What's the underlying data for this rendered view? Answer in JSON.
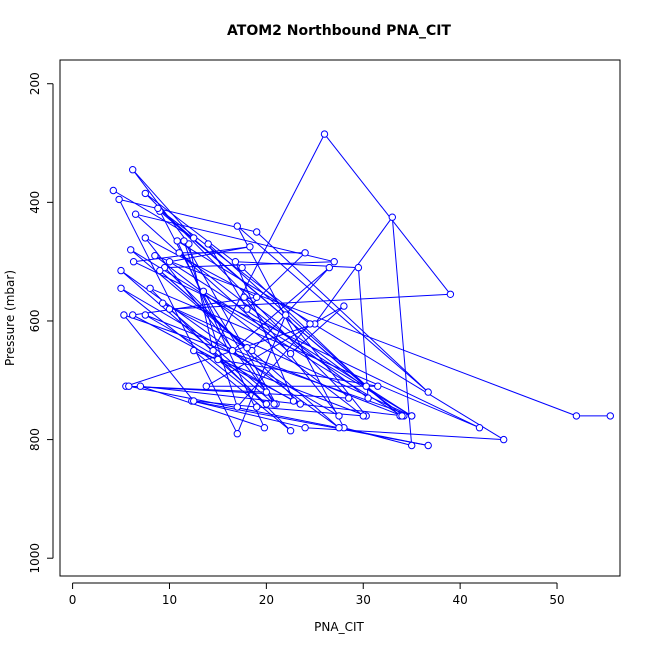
{
  "chart_data": {
    "type": "line",
    "title": "ATOM2 Northbound PNA_CIT",
    "xlabel": "PNA_CIT",
    "ylabel": "Pressure (mbar)",
    "xlim": [
      -1.3,
      56.5
    ],
    "ylim": [
      1030,
      160
    ],
    "y_reversed": true,
    "xticks": [
      0,
      10,
      20,
      30,
      40,
      50
    ],
    "yticks": [
      200,
      400,
      600,
      800,
      1000
    ],
    "color": "#0000ff",
    "marker": "open-circle",
    "grid": false,
    "legend": "none",
    "series": [
      {
        "x": [
          4.2,
          12.5,
          6.2,
          12.0,
          14.5,
          26.0,
          39.0,
          10.0,
          20.0,
          5.5,
          25.0,
          33.0,
          35.0,
          28.0,
          17.0,
          36.7,
          19.0,
          4.8,
          17.0,
          22.0,
          30.3,
          12.5,
          22.5,
          8.0,
          42.0,
          6.3,
          18.3,
          10.0,
          35.0,
          9.3,
          18.5,
          26.5,
          16.5,
          9.0,
          30.3,
          17.5,
          7.5,
          28.5,
          5.8,
          36.7,
          12.3,
          24.0,
          44.5,
          10.8,
          19.8,
          7.0,
          34.2,
          17.7,
          27.5,
          5.0,
          20.0,
          15.0,
          31.5,
          13.8,
          28.0,
          22.5,
          6.5,
          27.0,
          9.5,
          23.5,
          6.2,
          19.0,
          7.5,
          21.0,
          11.5,
          17.0,
          24.5,
          8.8,
          33.8,
          14.0,
          18.0,
          24.0,
          11.0,
          30.5,
          29.5,
          16.8,
          22.8,
          7.5,
          34.0,
          6.0,
          18.0,
          9.0,
          27.5,
          5.0,
          20.8,
          13.5,
          35.0,
          5.3,
          12.5,
          19.0,
          30.0,
          8.5,
          52.0,
          55.5
        ],
        "y": [
          380,
          460,
          345,
          470,
          650,
          285,
          555,
          580,
          720,
          710,
          605,
          425,
          810,
          780,
          440,
          720,
          450,
          395,
          790,
          590,
          760,
          650,
          785,
          545,
          780,
          500,
          475,
          500,
          760,
          570,
          650,
          510,
          650,
          415,
          710,
          510,
          385,
          730,
          710,
          810,
          735,
          780,
          800,
          465,
          780,
          710,
          760,
          560,
          760,
          545,
          740,
          665,
          710,
          710,
          575,
          655,
          420,
          500,
          510,
          740,
          590,
          560,
          460,
          740,
          465,
          745,
          605,
          410,
          760,
          470,
          580,
          485,
          485,
          730,
          510,
          500,
          735,
          590,
          760,
          480,
          645,
          515,
          780,
          515,
          740,
          550,
          760,
          590,
          735,
          745,
          760,
          490,
          760,
          760
        ]
      }
    ]
  }
}
